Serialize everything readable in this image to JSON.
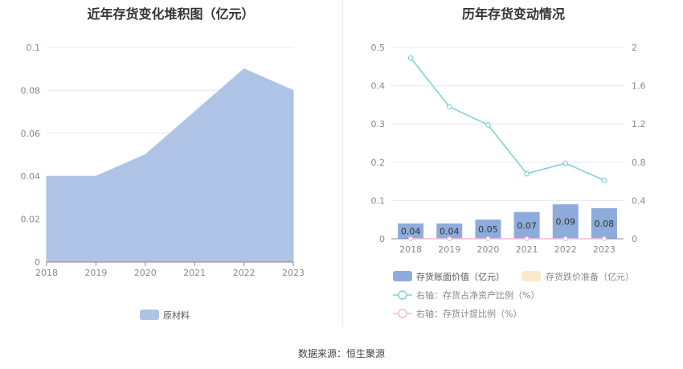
{
  "source_text": "数据来源：恒生聚源",
  "chart_data": [
    {
      "type": "area",
      "title": "近年存货变化堆积图（亿元）",
      "x": [
        "2018",
        "2019",
        "2020",
        "2021",
        "2022",
        "2023"
      ],
      "y_ticks": [
        "0",
        "0.02",
        "0.04",
        "0.06",
        "0.08",
        "0.1"
      ],
      "ylim": [
        0,
        0.1
      ],
      "grid": true,
      "legend_position": "bottom",
      "series": [
        {
          "name": "原材料",
          "values": [
            0.04,
            0.04,
            0.05,
            0.07,
            0.09,
            0.08
          ],
          "color": "#aec3e5"
        }
      ]
    },
    {
      "type": "bar",
      "title": "历年存货变动情况",
      "categories": [
        "2018",
        "2019",
        "2020",
        "2021",
        "2022",
        "2023"
      ],
      "y_left_ticks": [
        "0",
        "0.1",
        "0.2",
        "0.3",
        "0.4",
        "0.5"
      ],
      "y_right_ticks": [
        "0",
        "0.4",
        "0.8",
        "1.2",
        "1.6",
        "2"
      ],
      "ylim_left": [
        0,
        0.5
      ],
      "ylim_right": [
        0,
        2
      ],
      "grid": true,
      "legend_position": "bottom",
      "series": [
        {
          "name": "存货账面价值（亿元）",
          "type": "bar",
          "axis": "left",
          "values": [
            0.04,
            0.04,
            0.05,
            0.07,
            0.09,
            0.08
          ],
          "labels": [
            "0.04",
            "0.04",
            "0.05",
            "0.07",
            "0.09",
            "0.08"
          ],
          "color": "#8eacdb"
        },
        {
          "name": "存货跌价准备（亿元）",
          "type": "bar",
          "axis": "left",
          "values": [
            0,
            0,
            0,
            0,
            0,
            0
          ],
          "color": "#fce8c8"
        },
        {
          "name": "右轴：存货占净资产比例（%）",
          "type": "line",
          "axis": "right",
          "values": [
            1.89,
            1.38,
            1.19,
            0.68,
            0.79,
            0.61
          ],
          "color": "#7fd3d7"
        },
        {
          "name": "右轴：存货计提比例（%）",
          "type": "line",
          "axis": "right",
          "values": [
            0,
            0,
            0,
            0,
            0,
            0
          ],
          "color": "#f2bcd6"
        }
      ]
    }
  ]
}
